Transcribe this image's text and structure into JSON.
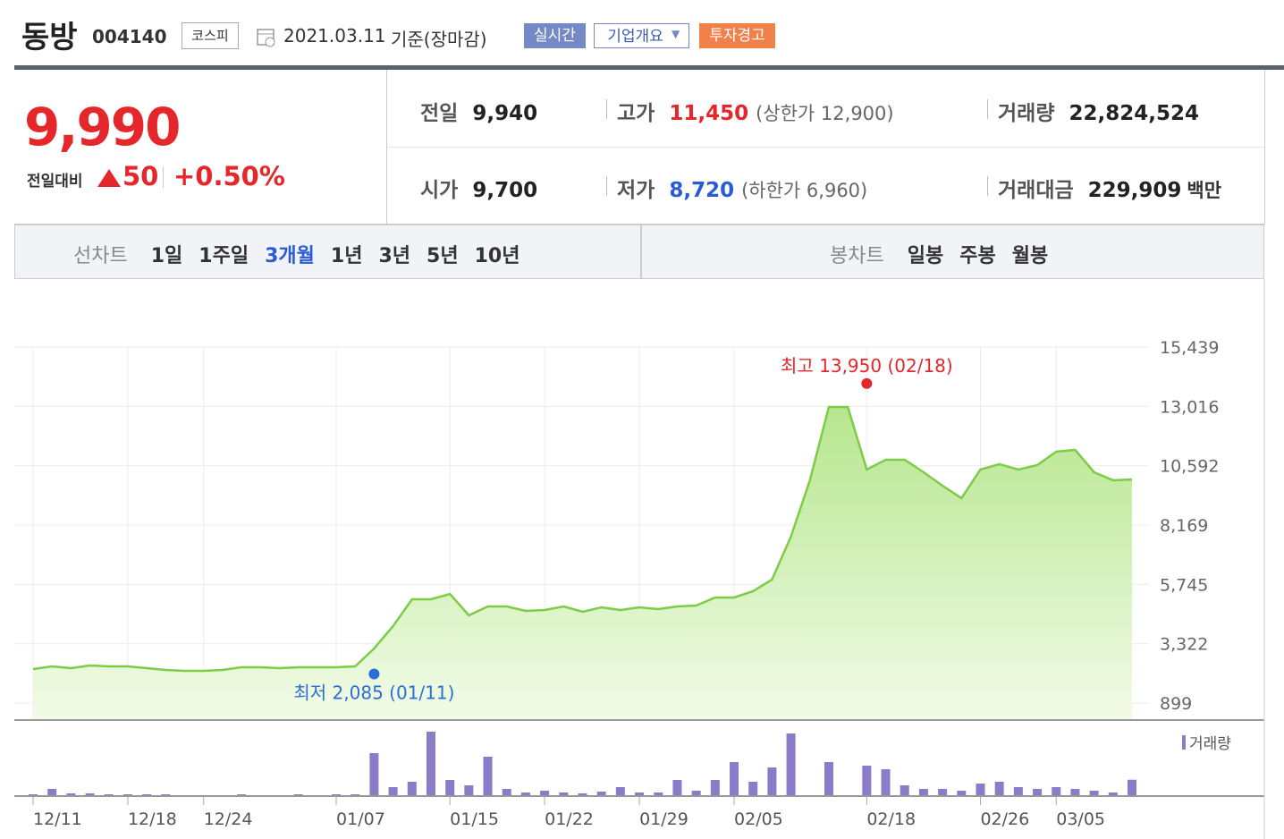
{
  "header": {
    "name": "동방",
    "code": "004140",
    "market": "코스피",
    "date": "2021.03.11",
    "basis": "기준(장마감)",
    "buttons": [
      "실시간",
      "기업개요",
      "투자경고"
    ]
  },
  "price": {
    "current": "9,990",
    "change_label": "전일대비",
    "change": "50",
    "change_pct": "+0.50%"
  },
  "stats": [
    {
      "label": "전일",
      "value": "9,940"
    },
    {
      "label": "고가",
      "value": "11,450",
      "note": "(상한가 12,900)"
    },
    {
      "label": "거래량",
      "value": "22,824,524"
    },
    {
      "label": "시가",
      "value": "9,700"
    },
    {
      "label": "저가",
      "value": "8,720",
      "note": "(하한가 6,960)"
    },
    {
      "label": "거래대금",
      "value": "229,909",
      "unit": "백만"
    }
  ],
  "tabs": {
    "line_label": "선차트",
    "line": [
      "1일",
      "1주일",
      "3개월",
      "1년",
      "3년",
      "5년",
      "10년"
    ],
    "active": 2,
    "candle_label": "봉차트",
    "candle": [
      "일봉",
      "주봉",
      "월봉"
    ]
  },
  "chart_data": {
    "type": "line",
    "categories": [
      "12/11",
      null,
      null,
      null,
      null,
      "12/18",
      null,
      null,
      null,
      "12/24",
      null,
      null,
      null,
      null,
      null,
      null,
      "01/07",
      null,
      null,
      null,
      null,
      null,
      "01/15",
      null,
      null,
      null,
      null,
      "01/22",
      null,
      null,
      null,
      null,
      "01/29",
      null,
      null,
      null,
      null,
      "02/05",
      null,
      null,
      null,
      null,
      null,
      null,
      "02/18",
      null,
      null,
      null,
      null,
      null,
      "02/26",
      null,
      null,
      null,
      "03/05",
      null,
      null,
      null,
      null
    ],
    "series": [
      {
        "color": "#7ccc45",
        "values": [
          2287,
          2397,
          2324,
          2434,
          2397,
          2397,
          2324,
          2251,
          2214,
          2214,
          2251,
          2360,
          2360,
          2324,
          2360,
          2360,
          2360,
          2397,
          3128,
          4041,
          5137,
          5137,
          5356,
          4480,
          4845,
          4845,
          4662,
          4699,
          4845,
          4626,
          4808,
          4699,
          4808,
          4735,
          4845,
          4882,
          5210,
          5210,
          5466,
          5941,
          7695,
          9997,
          12993,
          12993,
          10435,
          10837,
          10837,
          10325,
          9777,
          9266,
          10435,
          10654,
          10435,
          10618,
          11166,
          11239,
          10325,
          9997,
          10033
        ]
      },
      {
        "name": "거래량",
        "color": "#8a7cc8",
        "axis": "y2",
        "values": [
          2500000,
          10000000,
          3750000,
          3750000,
          2500000,
          2500000,
          2500000,
          2500000,
          1250000,
          0,
          0,
          2500000,
          0,
          0,
          2500000,
          0,
          2500000,
          2500000,
          60000000,
          12500000,
          20000000,
          90000000,
          22500000,
          15000000,
          55000000,
          10000000,
          5000000,
          7500000,
          5000000,
          3750000,
          6250000,
          12500000,
          5000000,
          5000000,
          22500000,
          7500000,
          22500000,
          47500000,
          20000000,
          40000000,
          87500000,
          0,
          47500000,
          0,
          42500000,
          37500000,
          15000000,
          10000000,
          10000000,
          7500000,
          17500000,
          20000000,
          12500000,
          10000000,
          12500000,
          10000000,
          7500000,
          5000000,
          22824524
        ]
      }
    ],
    "ylim": [
      899,
      15439
    ],
    "yticks": [
      899,
      {
        "value": 3322,
        "label": "3,322"
      },
      {
        "value": 5745,
        "label": "5,745"
      },
      {
        "value": 8169,
        "label": "8,169"
      },
      {
        "value": 10592,
        "label": "10,592"
      },
      {
        "value": 13016,
        "label": "13,016"
      },
      {
        "value": 15439,
        "label": "15,439"
      }
    ],
    "y2lim": [
      0,
      100000000
    ],
    "annotations": [
      {
        "text": "최고 13,950 (02/18)",
        "value": 13950,
        "point": 44,
        "color": "#e5262b"
      },
      {
        "text": "최저 2,085 (01/11)",
        "value": 2085,
        "point": 18,
        "color": "#2a6fd6"
      }
    ]
  }
}
